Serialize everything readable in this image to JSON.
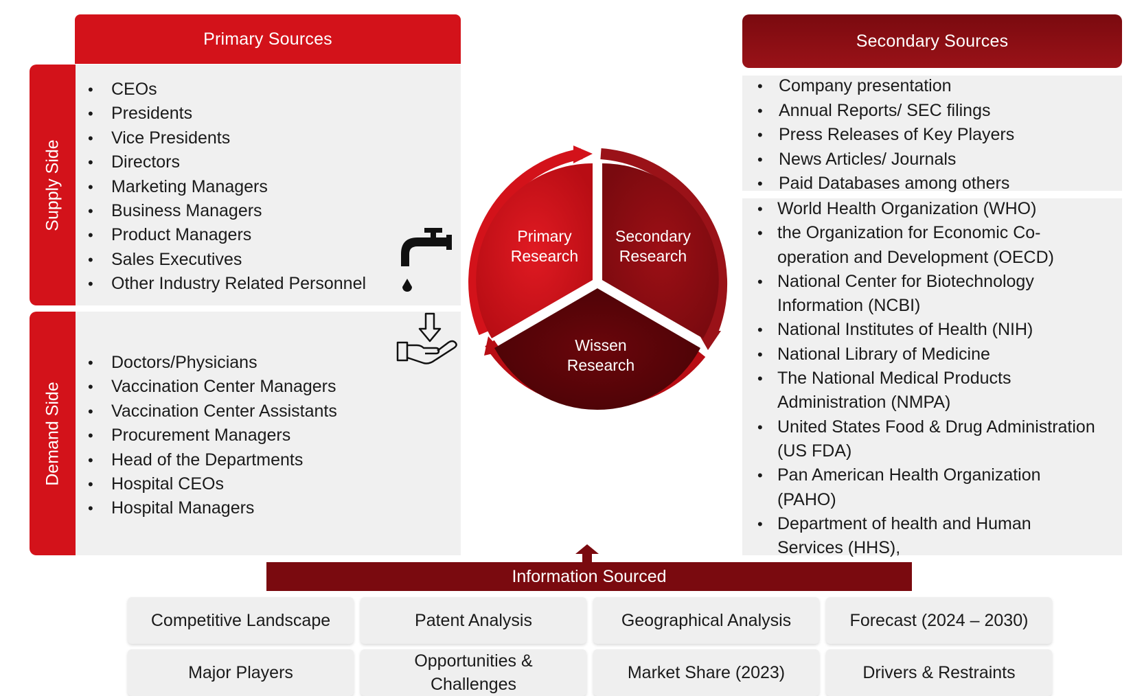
{
  "primary_sources": {
    "title": "Primary Sources",
    "supply_side": {
      "label": "Supply Side",
      "items": [
        "CEOs",
        "Presidents",
        "Vice Presidents",
        "Directors",
        "Marketing Managers",
        "Business Managers",
        "Product Managers",
        "Sales Executives",
        "Other Industry Related Personnel"
      ]
    },
    "demand_side": {
      "label": "Demand Side",
      "items": [
        "Doctors/Physicians",
        "Vaccination Center Managers",
        "Vaccination Center Assistants",
        "Procurement Managers",
        "Head of the Departments",
        "Hospital CEOs",
        "Hospital Managers"
      ]
    }
  },
  "secondary_sources": {
    "title": "Secondary Sources",
    "group1": [
      "Company presentation",
      "Annual Reports/ SEC filings",
      "Press Releases  of Key Players",
      "News Articles/ Journals",
      "Paid Databases among others"
    ],
    "group2": [
      "World Health Organization (WHO)",
      "the Organization for Economic Co-operation and Development (OECD)",
      "National Center for Biotechnology Information (NCBI)",
      "National Institutes of Health (NIH)",
      "National Library of Medicine",
      "The National Medical Products Administration (NMPA)",
      "United States Food & Drug Administration (US FDA)",
      "Pan American Health Organization (PAHO)",
      "Department of health and Human Services (HHS),"
    ]
  },
  "cycle": {
    "primary": "Primary\nResearch",
    "secondary": "Secondary\nResearch",
    "wissen": "Wissen\nResearch"
  },
  "information_sourced": {
    "title": "Information Sourced",
    "tiles": [
      "Competitive Landscape",
      "Patent Analysis",
      "Geographical Analysis",
      "Forecast (2024 – 2030)",
      "Major Players",
      "Opportunities & Challenges",
      "Market Share (2023)",
      "Drivers & Restraints"
    ]
  },
  "icons": [
    "tap-icon",
    "hand-receive-icon",
    "up-arrow-icon"
  ],
  "colors": {
    "red": "#d3121a",
    "dark_red": "#7a0a0f",
    "panel_gray": "#f0f0f0"
  }
}
